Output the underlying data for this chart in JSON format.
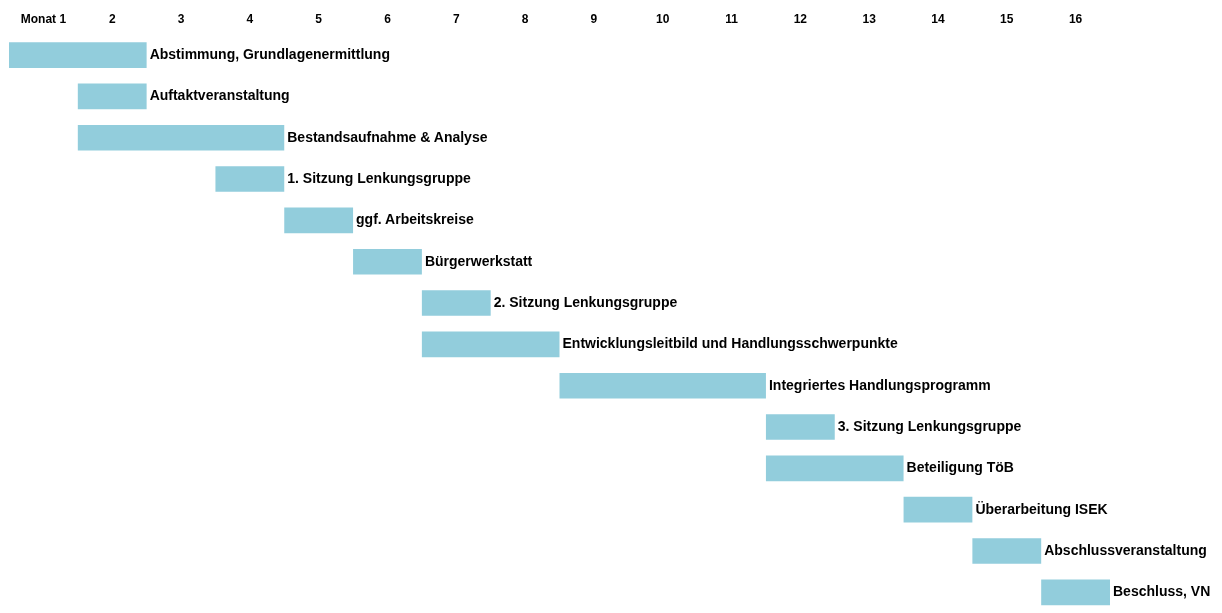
{
  "chart_data": {
    "type": "bar",
    "orientation": "horizontal",
    "categories": [
      "Abstimmung, Grundlagenermittlung",
      "Auftaktveranstaltung",
      "Bestandsaufnahme & Analyse",
      "1. Sitzung Lenkungsgruppe",
      "ggf. Arbeitskreise",
      "Bürgerwerkstatt",
      "2. Sitzung Lenkungsgruppe",
      "Entwicklungsleitbild und Handlungsschwerpunkte",
      "Integriertes Handlungsprogramm",
      "3. Sitzung Lenkungsgruppe",
      "Beteiligung TöB",
      "Überarbeitung ISEK",
      "Abschlussveranstaltung",
      "Beschluss, VN"
    ],
    "base": [
      0,
      1,
      1,
      3,
      4,
      5,
      6,
      6,
      8,
      11,
      11,
      13,
      14,
      15
    ],
    "values": [
      2,
      1,
      3,
      1,
      1,
      1,
      1,
      2,
      3,
      1,
      2,
      1,
      1,
      1
    ],
    "color": "#92cddc",
    "xlim": [
      0,
      16
    ],
    "xticks": [
      {
        "value": 0.5,
        "label": "Monat 1"
      },
      {
        "value": 1.5,
        "label": "2"
      },
      {
        "value": 2.5,
        "label": "3"
      },
      {
        "value": 3.5,
        "label": "4"
      },
      {
        "value": 4.5,
        "label": "5"
      },
      {
        "value": 5.5,
        "label": "6"
      },
      {
        "value": 6.5,
        "label": "7"
      },
      {
        "value": 7.5,
        "label": "8"
      },
      {
        "value": 8.5,
        "label": "9"
      },
      {
        "value": 9.5,
        "label": "10"
      },
      {
        "value": 10.5,
        "label": "11"
      },
      {
        "value": 11.5,
        "label": "12"
      },
      {
        "value": 12.5,
        "label": "13"
      },
      {
        "value": 13.5,
        "label": "14"
      },
      {
        "value": 14.5,
        "label": "15"
      },
      {
        "value": 15.5,
        "label": "16"
      }
    ],
    "grid": false,
    "legend": false
  }
}
